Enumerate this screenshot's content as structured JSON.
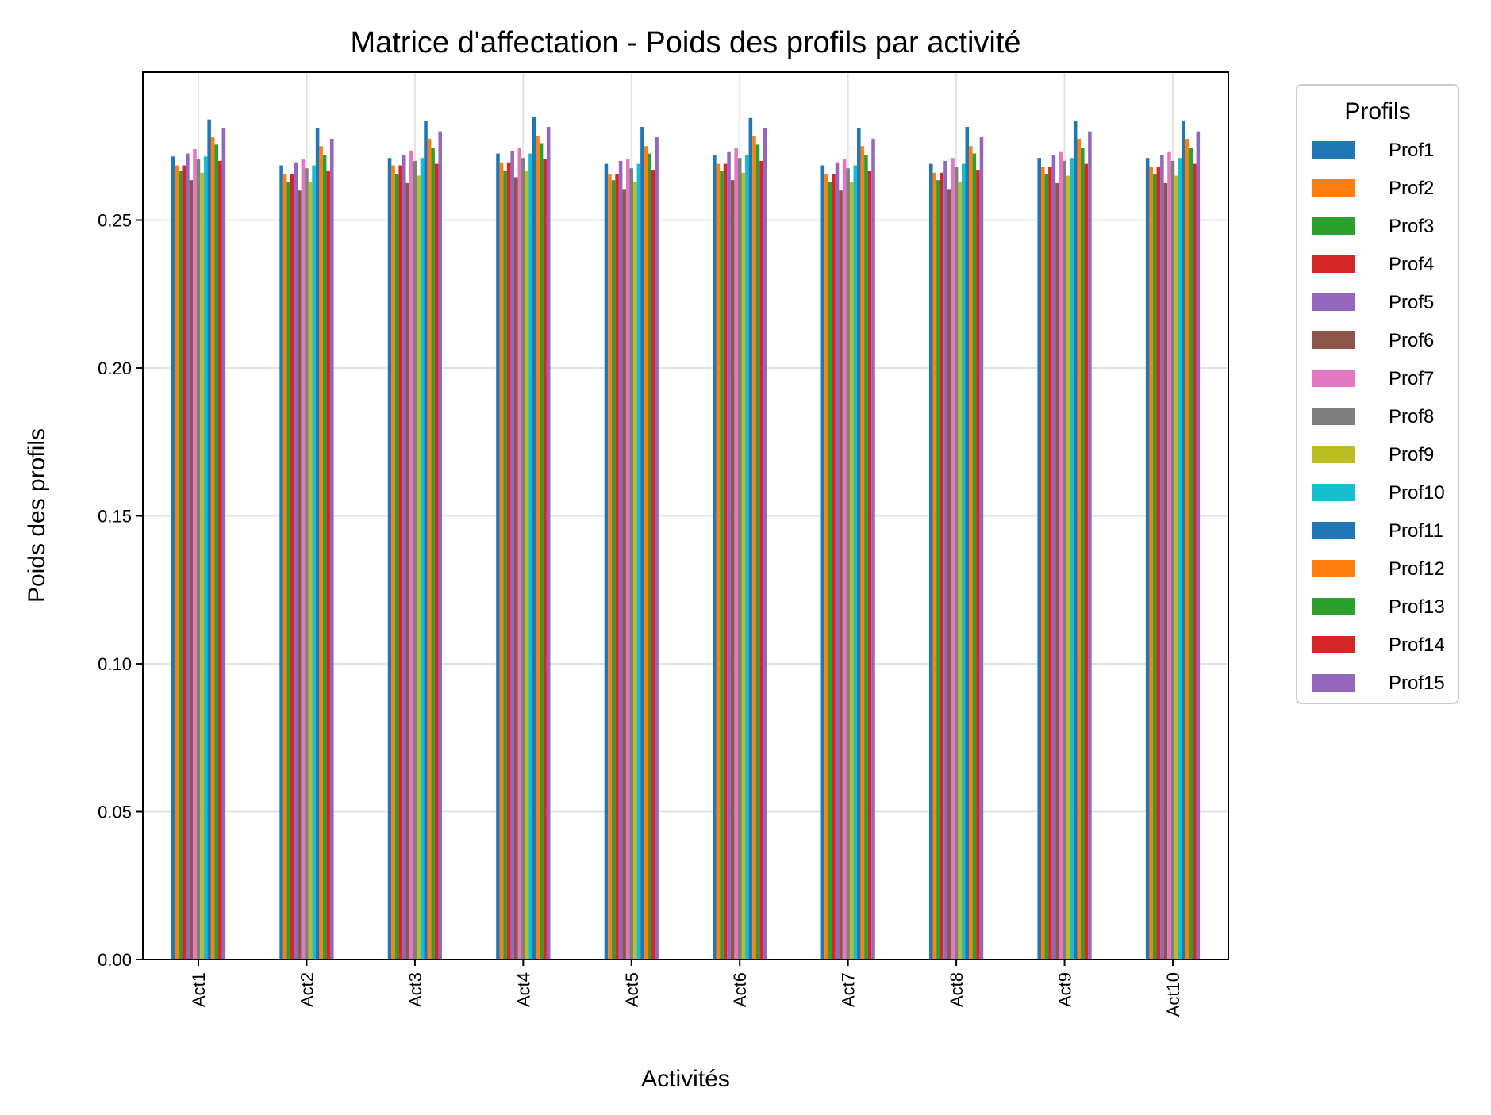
{
  "chart_data": {
    "type": "bar",
    "title": "Matrice d'affectation - Poids des profils par activité",
    "xlabel": "Activités",
    "ylabel": "Poids des profils",
    "ylim": [
      0,
      0.3
    ],
    "yticks": [
      "0.00",
      "0.05",
      "0.10",
      "0.15",
      "0.20",
      "0.25"
    ],
    "ytick_values": [
      0,
      0.05,
      0.1,
      0.15,
      0.2,
      0.25
    ],
    "grid": true,
    "legend": {
      "title": "Profils",
      "placement": "outside right, top"
    },
    "categories": [
      "Act1",
      "Act2",
      "Act3",
      "Act4",
      "Act5",
      "Act6",
      "Act7",
      "Act8",
      "Act9",
      "Act10"
    ],
    "series": [
      {
        "name": "Prof1",
        "color": "#1f77b4",
        "values": [
          0.2715,
          0.2685,
          0.271,
          0.2725,
          0.269,
          0.272,
          0.2685,
          0.269,
          0.271,
          0.271
        ]
      },
      {
        "name": "Prof2",
        "color": "#ff7f0e",
        "values": [
          0.2685,
          0.2655,
          0.2685,
          0.2695,
          0.2655,
          0.269,
          0.2655,
          0.266,
          0.268,
          0.268
        ]
      },
      {
        "name": "Prof3",
        "color": "#2ca02c",
        "values": [
          0.2665,
          0.263,
          0.2655,
          0.2665,
          0.2635,
          0.2665,
          0.263,
          0.2635,
          0.2655,
          0.2655
        ]
      },
      {
        "name": "Prof4",
        "color": "#d62728",
        "values": [
          0.2685,
          0.2655,
          0.2685,
          0.2695,
          0.2655,
          0.269,
          0.2655,
          0.266,
          0.268,
          0.268
        ]
      },
      {
        "name": "Prof5",
        "color": "#9467bd",
        "values": [
          0.2725,
          0.2695,
          0.272,
          0.2735,
          0.27,
          0.273,
          0.2695,
          0.27,
          0.272,
          0.272
        ]
      },
      {
        "name": "Prof6",
        "color": "#8c564b",
        "values": [
          0.2635,
          0.26,
          0.2625,
          0.2645,
          0.2605,
          0.2635,
          0.26,
          0.2605,
          0.2625,
          0.2625
        ]
      },
      {
        "name": "Prof7",
        "color": "#e377c2",
        "values": [
          0.274,
          0.2705,
          0.2735,
          0.2745,
          0.2705,
          0.2745,
          0.2705,
          0.271,
          0.273,
          0.273
        ]
      },
      {
        "name": "Prof8",
        "color": "#7f7f7f",
        "values": [
          0.2705,
          0.2675,
          0.27,
          0.271,
          0.2675,
          0.271,
          0.2675,
          0.268,
          0.27,
          0.27
        ]
      },
      {
        "name": "Prof9",
        "color": "#bcbd22",
        "values": [
          0.266,
          0.263,
          0.265,
          0.2665,
          0.263,
          0.266,
          0.263,
          0.263,
          0.265,
          0.265
        ]
      },
      {
        "name": "Prof10",
        "color": "#17becf",
        "values": [
          0.2715,
          0.2685,
          0.271,
          0.2725,
          0.269,
          0.272,
          0.2685,
          0.269,
          0.271,
          0.271
        ]
      },
      {
        "name": "Prof11",
        "color": "#1f77b4",
        "values": [
          0.284,
          0.281,
          0.2835,
          0.285,
          0.2815,
          0.2845,
          0.281,
          0.2815,
          0.2835,
          0.2835
        ]
      },
      {
        "name": "Prof12",
        "color": "#ff7f0e",
        "values": [
          0.278,
          0.275,
          0.2775,
          0.2785,
          0.275,
          0.2785,
          0.275,
          0.275,
          0.2775,
          0.2775
        ]
      },
      {
        "name": "Prof13",
        "color": "#2ca02c",
        "values": [
          0.2755,
          0.272,
          0.2745,
          0.276,
          0.2725,
          0.2755,
          0.272,
          0.2725,
          0.2745,
          0.2745
        ]
      },
      {
        "name": "Prof14",
        "color": "#d62728",
        "values": [
          0.27,
          0.2665,
          0.269,
          0.2705,
          0.267,
          0.27,
          0.2665,
          0.267,
          0.269,
          0.269
        ]
      },
      {
        "name": "Prof15",
        "color": "#9467bd",
        "values": [
          0.281,
          0.2775,
          0.28,
          0.2815,
          0.278,
          0.281,
          0.2775,
          0.278,
          0.28,
          0.28
        ]
      }
    ]
  }
}
